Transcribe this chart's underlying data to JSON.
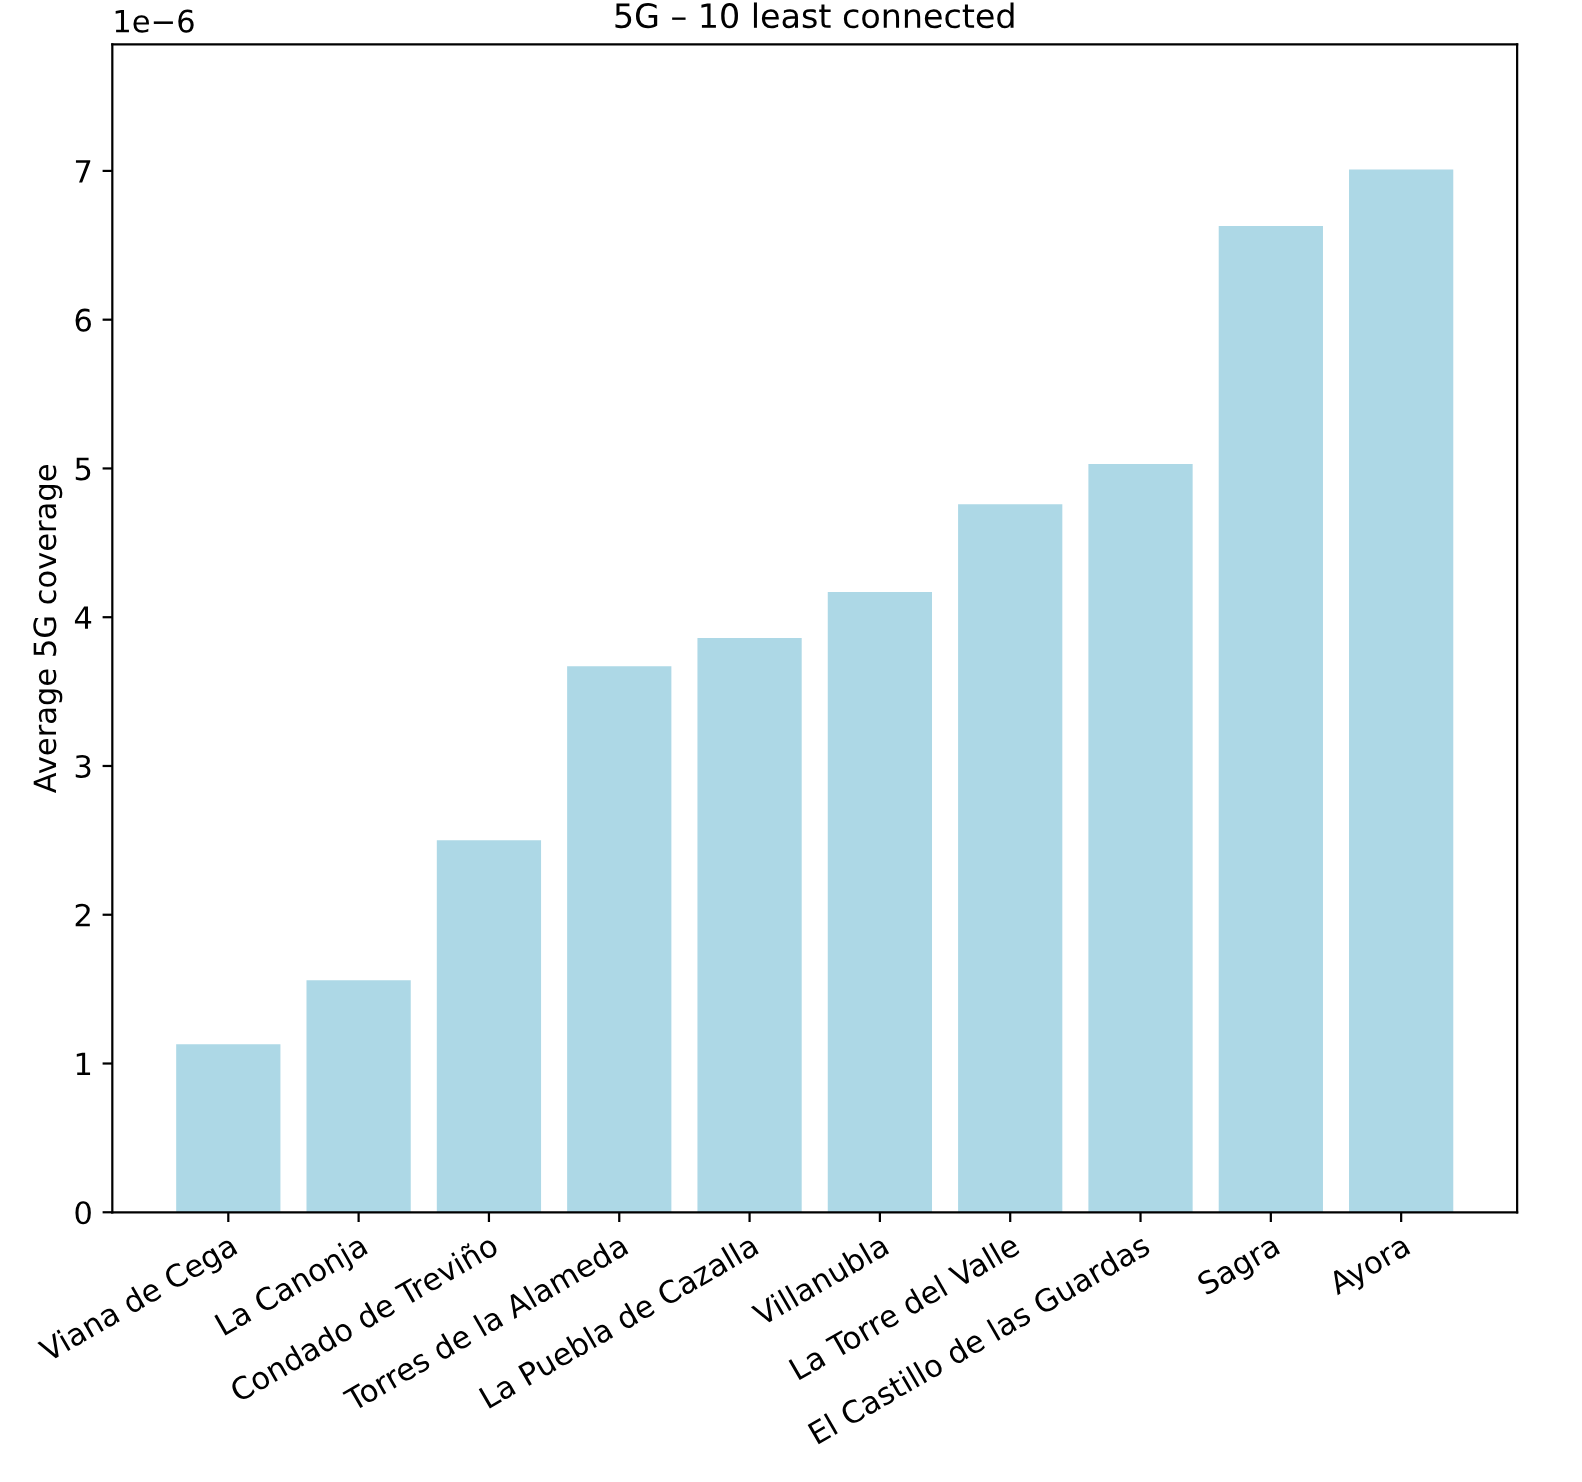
{
  "chart_data": {
    "type": "bar",
    "title": "5G – 10 least connected",
    "ylabel": "Average 5G coverage",
    "categories": [
      "Viana de Cega",
      "La Canonja",
      "Condado de Treviño",
      "Torres de la Alameda",
      "La Puebla de Cazalla",
      "Villanubla",
      "La Torre del Valle",
      "El Castillo de las Guardas",
      "Sagra",
      "Ayora"
    ],
    "values": [
      1.13,
      1.56,
      2.5,
      3.67,
      3.86,
      4.17,
      4.76,
      5.03,
      6.63,
      7.01
    ],
    "color": "#add8e6",
    "ylim": [
      0,
      7.85
    ],
    "yticks": [
      0,
      1,
      2,
      3,
      4,
      5,
      6,
      7
    ],
    "annotations": [
      "1e−6"
    ],
    "grid": false
  }
}
